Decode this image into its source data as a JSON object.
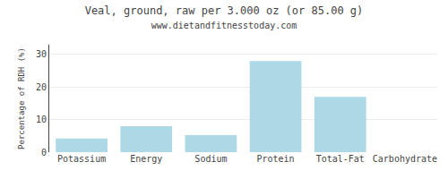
{
  "chart_data": {
    "type": "bar",
    "title": "Veal, ground, raw per 3.000 oz (or 85.00 g)",
    "subtitle": "www.dietandfitnesstoday.com",
    "categories": [
      "Potassium",
      "Energy",
      "Sodium",
      "Protein",
      "Total-Fat",
      "Carbohydrate"
    ],
    "values": [
      4.2,
      8.0,
      5.2,
      28.0,
      17.0,
      0.0
    ],
    "color": "#add8e6",
    "ylabel": "Percentage of RDH (%)",
    "ylim": [
      0,
      33
    ],
    "yticks": [
      0,
      10,
      20,
      30
    ],
    "grid": true
  }
}
